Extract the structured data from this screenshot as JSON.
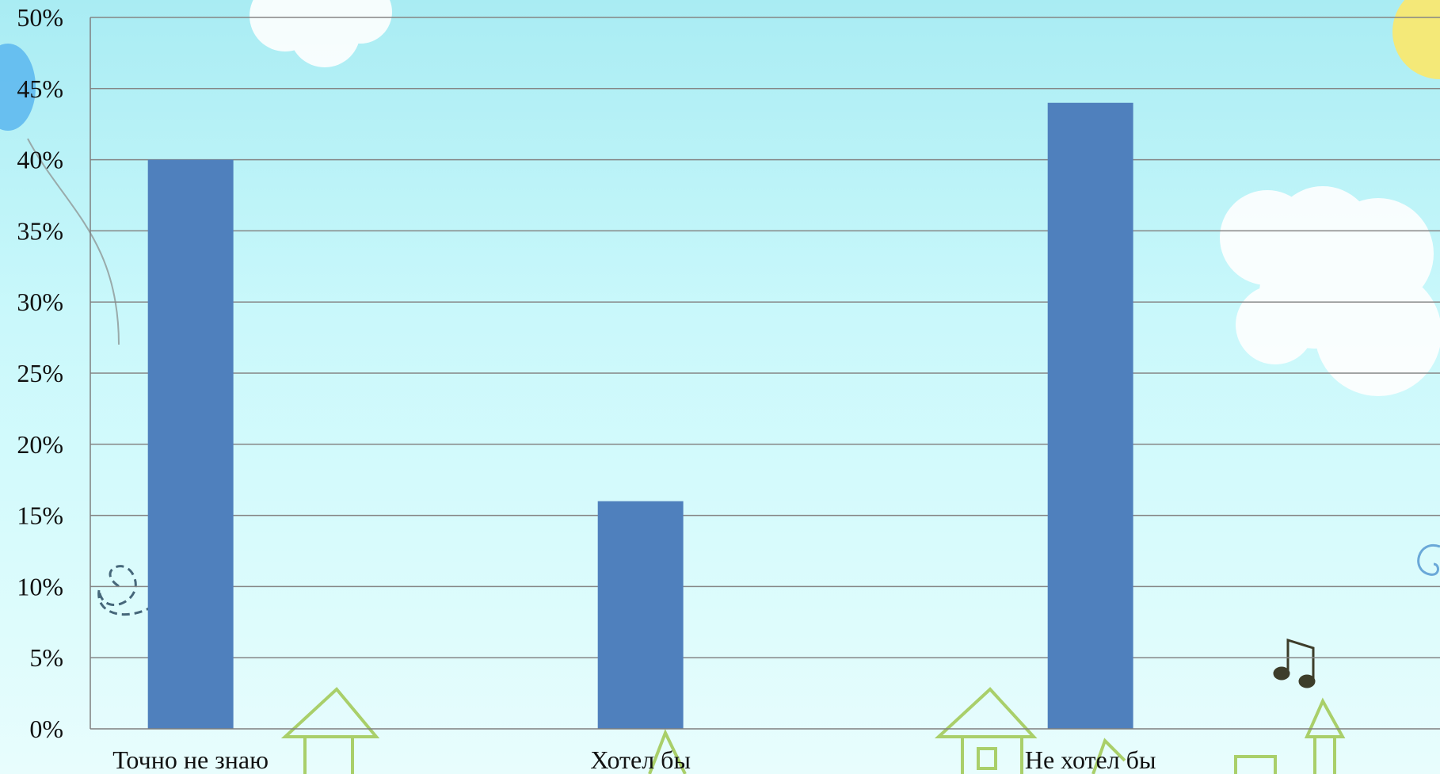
{
  "chart_data": {
    "type": "bar",
    "categories": [
      "Точно не знаю",
      "Хотел бы",
      "Не хотел бы"
    ],
    "values": [
      40,
      16,
      44
    ],
    "ylim": [
      0,
      50
    ],
    "yticks": [
      "0%",
      "5%",
      "10%",
      "15%",
      "20%",
      "25%",
      "30%",
      "35%",
      "40%",
      "45%",
      "50%"
    ],
    "grid": true,
    "legend": "none",
    "bar_color": "#4f80bd"
  }
}
